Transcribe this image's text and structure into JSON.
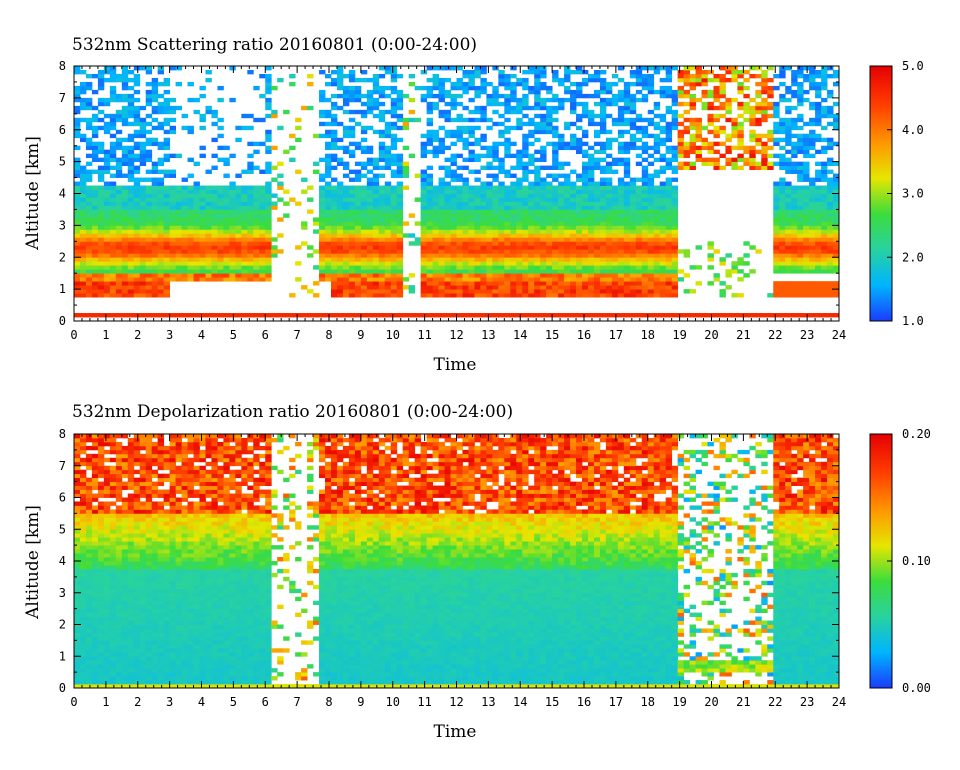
{
  "chart_data": [
    {
      "type": "heatmap",
      "title": "532nm Scattering ratio  20160801 (0:00-24:00)",
      "xlabel": "Time",
      "ylabel": "Altitude [km]",
      "xlim": [
        0,
        24
      ],
      "ylim": [
        0,
        8
      ],
      "x_ticks": [
        "0",
        "1",
        "2",
        "3",
        "4",
        "5",
        "6",
        "7",
        "8",
        "9",
        "10",
        "11",
        "12",
        "13",
        "14",
        "15",
        "16",
        "17",
        "18",
        "19",
        "20",
        "21",
        "22",
        "23",
        "24"
      ],
      "y_ticks": [
        "0",
        "1",
        "2",
        "3",
        "4",
        "5",
        "6",
        "7",
        "8"
      ],
      "colorbar": {
        "range": [
          1.0,
          5.0
        ],
        "tick_labels": [
          "1.0",
          "2.0",
          "3.0",
          "4.0",
          "5.0"
        ],
        "scale_colors": [
          "#1a3cff",
          "#00b4ff",
          "#28d2a0",
          "#3cdc3c",
          "#e6e600",
          "#ff9600",
          "#ff3c00",
          "#e60000"
        ]
      },
      "features": {
        "surface_line_km": 0.2,
        "low_cloud_km": [
          0.8,
          1.4
        ],
        "aerosol_layer_km": [
          1.5,
          3.5
        ],
        "aerosol_peak_km": 2.3,
        "gaps_hours": [
          [
            6.2,
            7.6
          ],
          [
            10.4,
            10.9
          ],
          [
            19.0,
            22.0
          ]
        ],
        "high_cloud_hours": [
          19.0,
          22.0
        ],
        "high_cloud_km": [
          4.8,
          8.0
        ]
      }
    },
    {
      "type": "heatmap",
      "title": "532nm Depolarization ratio  20160801 (0:00-24:00)",
      "xlabel": "Time",
      "ylabel": "Altitude [km]",
      "xlim": [
        0,
        24
      ],
      "ylim": [
        0,
        8
      ],
      "x_ticks": [
        "0",
        "1",
        "2",
        "3",
        "4",
        "5",
        "6",
        "7",
        "8",
        "9",
        "10",
        "11",
        "12",
        "13",
        "14",
        "15",
        "16",
        "17",
        "18",
        "19",
        "20",
        "21",
        "22",
        "23",
        "24"
      ],
      "y_ticks": [
        "0",
        "1",
        "2",
        "3",
        "4",
        "5",
        "6",
        "7",
        "8"
      ],
      "colorbar": {
        "range": [
          0.0,
          0.2
        ],
        "tick_labels": [
          "0.00",
          "0.10",
          "0.20"
        ],
        "scale_colors": [
          "#1a3cff",
          "#00b4ff",
          "#28d2a0",
          "#3cdc3c",
          "#e6e600",
          "#ff9600",
          "#ff3c00",
          "#e60000"
        ]
      },
      "features": {
        "surface_band_km": 0.15,
        "low_depol_layer_km": [
          0.3,
          3.8
        ],
        "mid_layer_km": [
          3.8,
          5.5
        ],
        "high_depol_layer_km": [
          5.5,
          8.0
        ],
        "gaps_hours": [
          [
            6.2,
            7.6
          ],
          [
            19.0,
            22.0
          ]
        ]
      }
    }
  ]
}
